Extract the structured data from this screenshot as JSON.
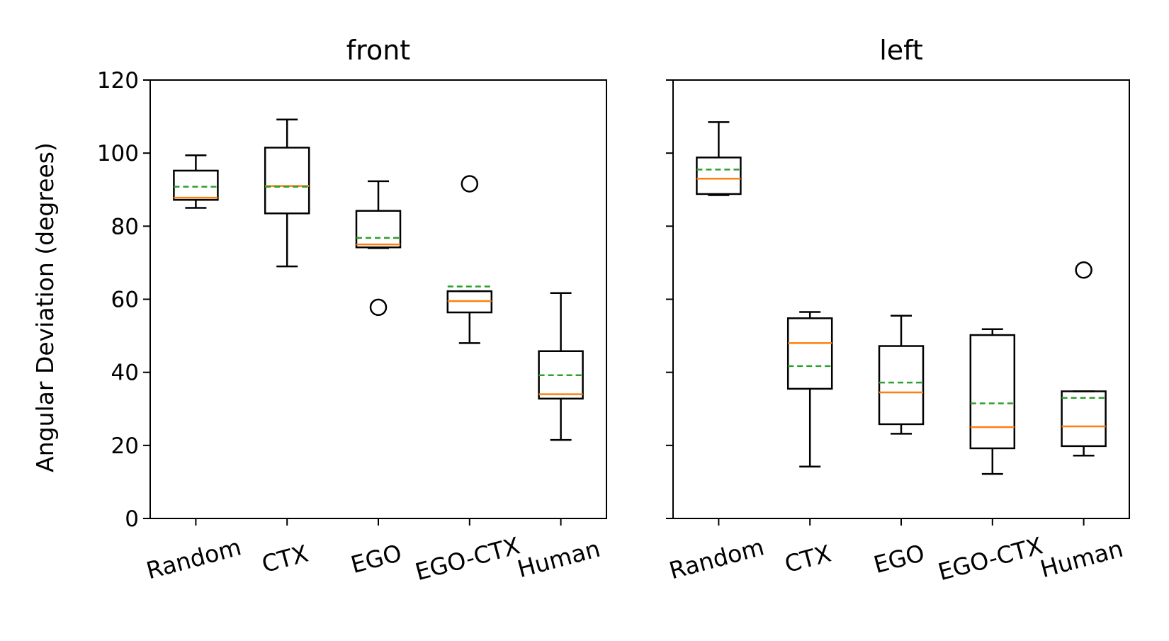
{
  "figure": {
    "ylabel": "Angular Deviation (degrees)"
  },
  "chart_data": [
    {
      "type": "boxplot",
      "title": "front",
      "ylabel": "Angular Deviation (degrees)",
      "ylim": [
        0,
        120
      ],
      "yticks": [
        0,
        20,
        40,
        60,
        80,
        100,
        120
      ],
      "categories": [
        "Random",
        "CTX",
        "EGO",
        "EGO-CTX",
        "Human"
      ],
      "boxes": [
        {
          "whisker_low": 85,
          "q1": 87.2,
          "median": 87.8,
          "mean": 90.8,
          "q3": 95.2,
          "whisker_high": 99.4,
          "outliers": []
        },
        {
          "whisker_low": 69,
          "q1": 83.5,
          "median": 91.0,
          "mean": 90.8,
          "q3": 101.5,
          "whisker_high": 109.2,
          "outliers": []
        },
        {
          "whisker_low": 74,
          "q1": 74.2,
          "median": 75.0,
          "mean": 76.8,
          "q3": 84.2,
          "whisker_high": 92.3,
          "outliers": [
            57.8
          ]
        },
        {
          "whisker_low": 48,
          "q1": 56.4,
          "median": 59.5,
          "mean": 63.5,
          "q3": 62.2,
          "whisker_high": 62.2,
          "outliers": [
            91.6
          ]
        },
        {
          "whisker_low": 21.5,
          "q1": 32.8,
          "median": 34.0,
          "mean": 39.2,
          "q3": 45.8,
          "whisker_high": 61.7,
          "outliers": []
        }
      ],
      "colors": {
        "box": "#000000",
        "median": "#ff7f0e",
        "mean": "#2ca02c"
      },
      "grid": false
    },
    {
      "type": "boxplot",
      "title": "left",
      "ylim": [
        0,
        120
      ],
      "yticks": [
        0,
        20,
        40,
        60,
        80,
        100,
        120
      ],
      "categories": [
        "Random",
        "CTX",
        "EGO",
        "EGO-CTX",
        "Human"
      ],
      "boxes": [
        {
          "whisker_low": 88.5,
          "q1": 88.8,
          "median": 93.0,
          "mean": 95.5,
          "q3": 98.8,
          "whisker_high": 108.5,
          "outliers": []
        },
        {
          "whisker_low": 14.2,
          "q1": 35.5,
          "median": 48.0,
          "mean": 41.7,
          "q3": 54.8,
          "whisker_high": 56.5,
          "outliers": []
        },
        {
          "whisker_low": 23.2,
          "q1": 25.8,
          "median": 34.5,
          "mean": 37.2,
          "q3": 47.2,
          "whisker_high": 55.5,
          "outliers": []
        },
        {
          "whisker_low": 12.2,
          "q1": 19.2,
          "median": 25.0,
          "mean": 31.5,
          "q3": 50.2,
          "whisker_high": 51.8,
          "outliers": []
        },
        {
          "whisker_low": 17.2,
          "q1": 19.8,
          "median": 25.2,
          "mean": 33.0,
          "q3": 34.8,
          "whisker_high": 34.8,
          "outliers": [
            68.0
          ]
        }
      ],
      "colors": {
        "box": "#000000",
        "median": "#ff7f0e",
        "mean": "#2ca02c"
      },
      "grid": false
    }
  ]
}
